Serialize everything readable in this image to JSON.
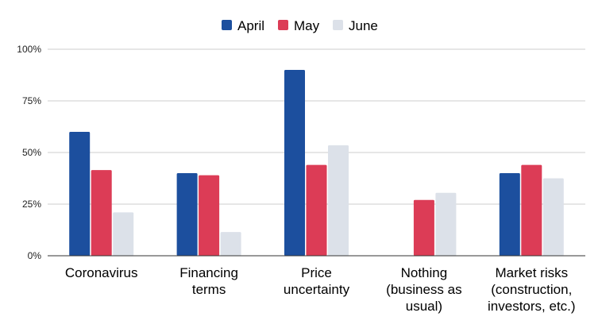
{
  "chart_data": {
    "type": "bar",
    "categories": [
      "Coronavirus",
      "Financing terms",
      "Price uncertainty",
      "Nothing (business as usual)",
      "Market risks (construction, investors, etc.)"
    ],
    "category_lines": [
      [
        "Coronavirus"
      ],
      [
        "Financing",
        "terms"
      ],
      [
        "Price",
        "uncertainty"
      ],
      [
        "Nothing",
        "(business as",
        "usual)"
      ],
      [
        "Market risks",
        "(construction,",
        "investors, etc.)"
      ]
    ],
    "series": [
      {
        "name": "April",
        "values": [
          60,
          40,
          90,
          0,
          40
        ],
        "color": "#1c4f9e"
      },
      {
        "name": "May",
        "values": [
          41.5,
          39,
          44,
          27,
          44
        ],
        "color": "#dc3c56"
      },
      {
        "name": "June",
        "values": [
          21,
          11.5,
          53.5,
          30.5,
          37.5
        ],
        "color": "#dce1e9"
      }
    ],
    "ylim": [
      0,
      100
    ],
    "yticks": [
      0,
      25,
      50,
      75,
      100
    ],
    "ytick_labels": [
      "0%",
      "25%",
      "50%",
      "75%",
      "100%"
    ],
    "grid": true,
    "legend_position": "top-center",
    "title": "",
    "xlabel": "",
    "ylabel": ""
  }
}
